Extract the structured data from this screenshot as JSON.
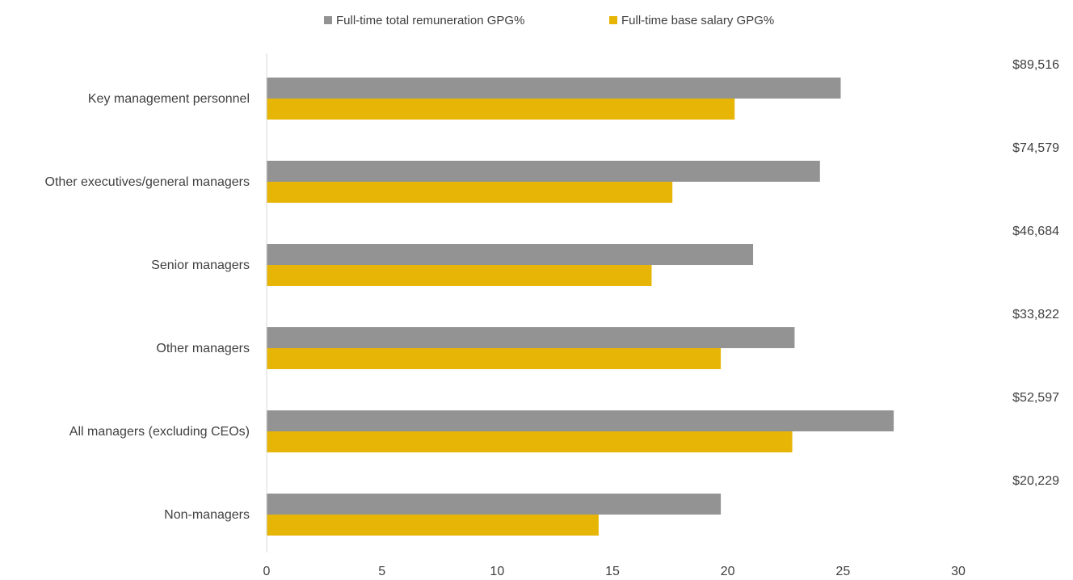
{
  "chart_data": {
    "type": "bar",
    "orientation": "horizontal",
    "categories": [
      "Key management personnel",
      "Other executives/general managers",
      "Senior managers",
      "Other managers",
      "All managers (excluding CEOs)",
      "Non-managers"
    ],
    "series": [
      {
        "name": "Full-time total remuneration GPG%",
        "color": "#939393",
        "values": [
          24.9,
          24.0,
          21.1,
          22.9,
          27.2,
          19.7
        ]
      },
      {
        "name": "Full-time base salary GPG%",
        "color": "#e6b506",
        "values": [
          20.3,
          17.6,
          16.7,
          19.7,
          22.8,
          14.4
        ]
      }
    ],
    "side_labels": [
      "$89,516",
      "$74,579",
      "$46,684",
      "$33,822",
      "$52,597",
      "$20,229"
    ],
    "x_ticks": [
      "0",
      "5",
      "10",
      "15",
      "20",
      "25",
      "30"
    ],
    "xlim": [
      0,
      30
    ],
    "title": "",
    "xlabel": "",
    "ylabel": "",
    "grid": false,
    "legend_position": "top"
  }
}
